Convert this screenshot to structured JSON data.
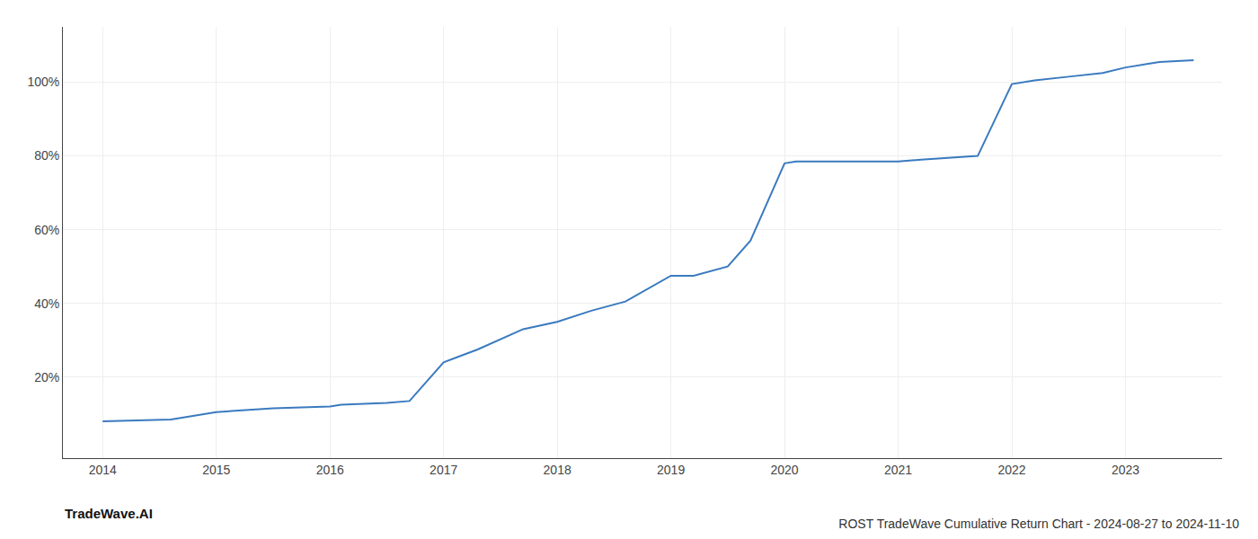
{
  "chart_data": {
    "type": "line",
    "title": "ROST TradeWave Cumulative Return Chart - 2024-08-27 to 2024-11-10",
    "annotations": [
      {
        "text": "TradeWave.AI"
      }
    ],
    "x": [
      2014.0,
      2014.6,
      2015.0,
      2015.5,
      2016.0,
      2016.1,
      2016.5,
      2016.7,
      2017.0,
      2017.3,
      2017.7,
      2018.0,
      2018.3,
      2018.6,
      2019.0,
      2019.2,
      2019.5,
      2019.7,
      2020.0,
      2020.1,
      2020.5,
      2020.8,
      2021.0,
      2021.2,
      2021.5,
      2021.7,
      2022.0,
      2022.2,
      2022.5,
      2022.8,
      2023.0,
      2023.3,
      2023.6
    ],
    "values": [
      8.0,
      8.5,
      10.5,
      11.5,
      12.0,
      12.5,
      13.0,
      13.5,
      24.0,
      27.5,
      33.0,
      35.0,
      38.0,
      40.5,
      47.5,
      47.5,
      50.0,
      57.0,
      78.0,
      78.5,
      78.5,
      78.5,
      78.5,
      79.0,
      79.5,
      80.0,
      99.5,
      100.5,
      101.5,
      102.5,
      104.0,
      105.5,
      106.0
    ],
    "color": "#3a7abf",
    "xlim": [
      2013.65,
      2023.85
    ],
    "ylim": [
      -2,
      115
    ],
    "xticks": [
      2014,
      2015,
      2016,
      2017,
      2018,
      2019,
      2020,
      2021,
      2022,
      2023
    ],
    "yticks": [
      {
        "value": 20,
        "label": "20%"
      },
      {
        "value": 40,
        "label": "40%"
      },
      {
        "value": 60,
        "label": "60%"
      },
      {
        "value": 80,
        "label": "80%"
      },
      {
        "value": 100,
        "label": "100%"
      }
    ],
    "grid": true
  }
}
